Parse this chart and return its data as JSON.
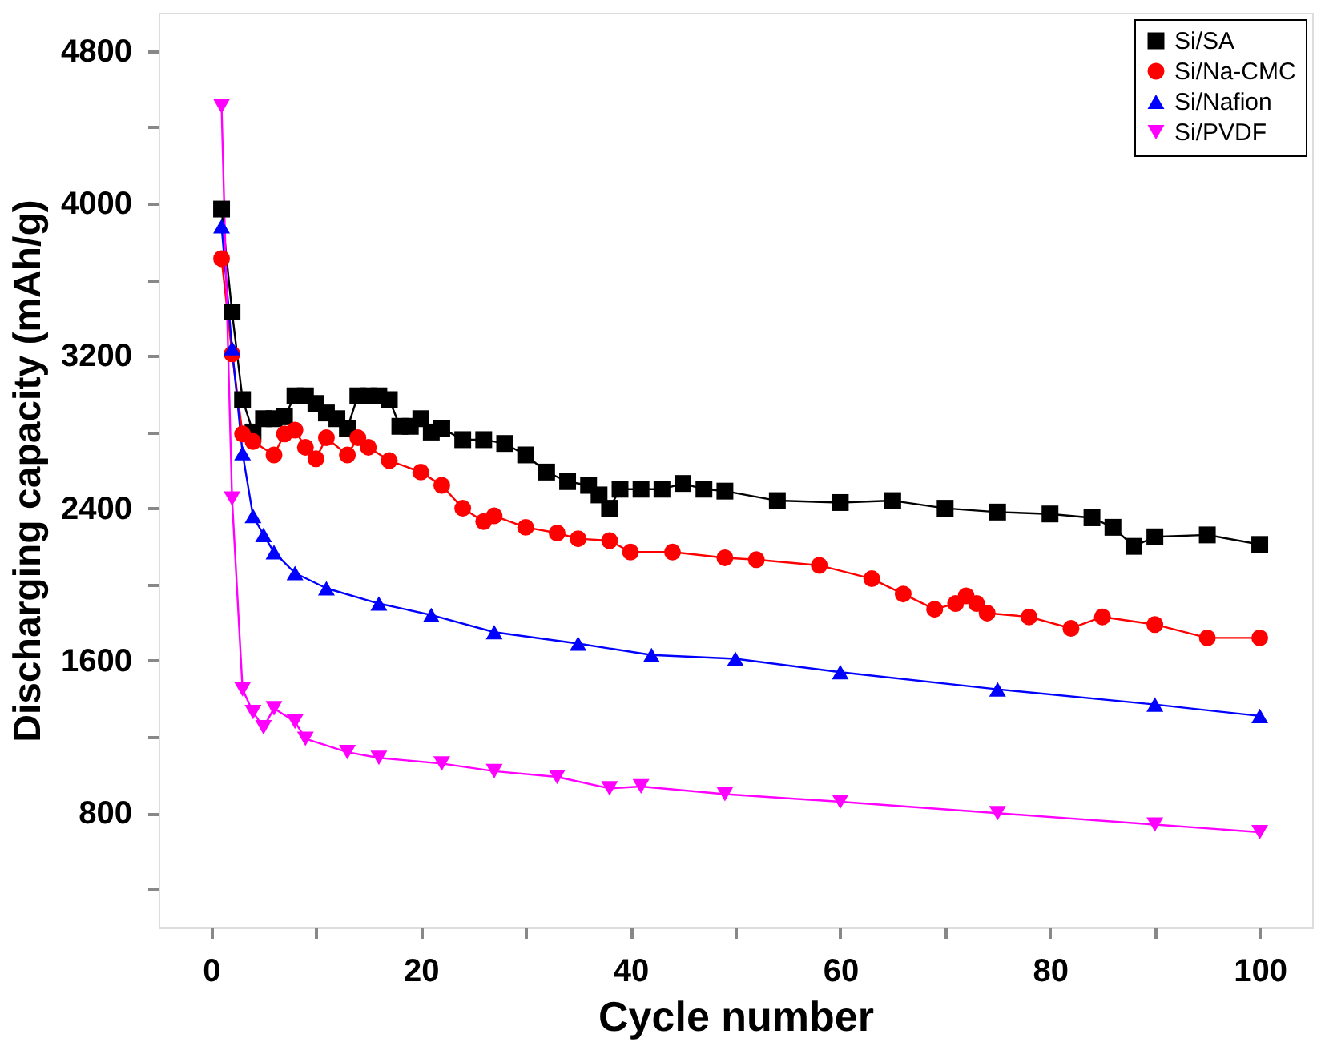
{
  "chart_data": {
    "type": "line",
    "xlabel": "Cycle number",
    "ylabel": "Discharging capacity (mAh/g)",
    "xlim": [
      -5,
      105
    ],
    "ylim": [
      200,
      5000
    ],
    "xticks": [
      0,
      {
        "value": 10,
        "label": null
      },
      20,
      {
        "value": 30,
        "label": null
      },
      40,
      {
        "value": 50,
        "label": null
      },
      60,
      {
        "value": 70,
        "label": null
      },
      80,
      {
        "value": 90,
        "label": null
      },
      100
    ],
    "yticks": [
      {
        "value": 400,
        "label": null
      },
      800,
      {
        "value": 1200,
        "label": null
      },
      1600,
      {
        "value": 2000,
        "label": null
      },
      2400,
      {
        "value": 2800,
        "label": null
      },
      3200,
      {
        "value": 3600,
        "label": null
      },
      4000,
      {
        "value": 4400,
        "label": null
      },
      4800
    ],
    "grid": false,
    "legend": "top right",
    "line_style": "solid",
    "series": [
      {
        "name": "Si/SA",
        "color": "#000000",
        "marker": "square",
        "x": [
          1,
          2,
          3,
          4,
          5,
          6,
          7,
          8,
          9,
          10,
          11,
          12,
          13,
          14,
          15,
          16,
          17,
          18,
          19,
          20,
          21,
          22,
          24,
          26,
          28,
          30,
          32,
          34,
          36,
          37,
          38,
          39,
          41,
          43,
          45,
          47,
          49,
          54,
          60,
          65,
          70,
          75,
          80,
          84,
          86,
          88,
          90,
          95,
          100
        ],
        "values": [
          3970,
          3430,
          2970,
          2800,
          2870,
          2870,
          2880,
          2990,
          2990,
          2950,
          2900,
          2870,
          2820,
          2990,
          2990,
          2990,
          2970,
          2830,
          2830,
          2870,
          2800,
          2820,
          2760,
          2760,
          2740,
          2680,
          2590,
          2540,
          2520,
          2470,
          2400,
          2500,
          2500,
          2500,
          2530,
          2500,
          2490,
          2440,
          2430,
          2440,
          2400,
          2380,
          2370,
          2350,
          2300,
          2200,
          2250,
          2260,
          2210
        ]
      },
      {
        "name": "Si/Na-CMC",
        "color": "#ff0000",
        "marker": "circle",
        "x": [
          1,
          2,
          3,
          4,
          6,
          7,
          8,
          9,
          10,
          11,
          13,
          14,
          15,
          17,
          20,
          22,
          24,
          26,
          27,
          30,
          33,
          35,
          38,
          40,
          44,
          49,
          52,
          58,
          63,
          66,
          69,
          71,
          72,
          73,
          74,
          78,
          82,
          85,
          90,
          95,
          100
        ],
        "values": [
          3710,
          3210,
          2790,
          2750,
          2680,
          2790,
          2810,
          2720,
          2660,
          2770,
          2680,
          2770,
          2720,
          2650,
          2590,
          2520,
          2400,
          2330,
          2360,
          2300,
          2270,
          2240,
          2230,
          2170,
          2170,
          2140,
          2130,
          2100,
          2030,
          1950,
          1870,
          1900,
          1940,
          1900,
          1850,
          1830,
          1770,
          1830,
          1790,
          1720,
          1720
        ]
      },
      {
        "name": "Si/Nafion",
        "color": "#0000ff",
        "marker": "triangle",
        "x": [
          1,
          2,
          3,
          4,
          5,
          6,
          8,
          11,
          16,
          21,
          27,
          35,
          42,
          50,
          60,
          75,
          90,
          100
        ],
        "values": [
          3880,
          3240,
          2690,
          2360,
          2260,
          2170,
          2060,
          1980,
          1900,
          1840,
          1750,
          1690,
          1630,
          1610,
          1540,
          1450,
          1370,
          1310
        ]
      },
      {
        "name": "Si/PVDF",
        "color": "#ff00ff",
        "marker": "triangle-down",
        "x": [
          1,
          2,
          3,
          4,
          5,
          6,
          8,
          9,
          13,
          16,
          22,
          27,
          33,
          38,
          41,
          49,
          60,
          75,
          90,
          100
        ],
        "values": [
          4510,
          2450,
          1450,
          1330,
          1250,
          1350,
          1280,
          1190,
          1120,
          1090,
          1060,
          1020,
          990,
          930,
          940,
          900,
          860,
          800,
          740,
          700
        ]
      }
    ]
  }
}
